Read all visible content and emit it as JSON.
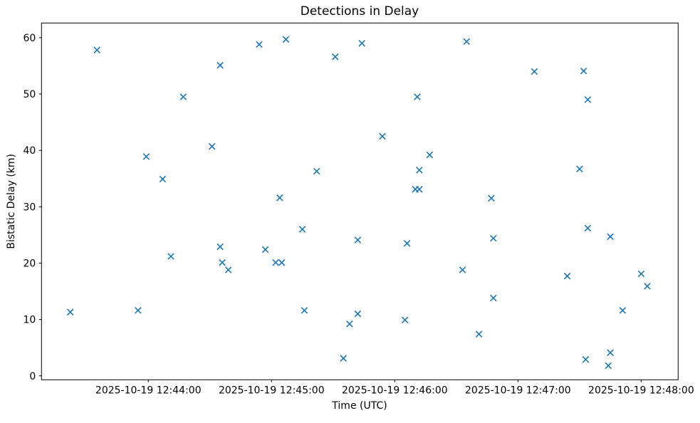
{
  "title": "Detections in Delay",
  "colors": {
    "marker": "#1f77b4",
    "axis": "#000000",
    "background": "#ffffff"
  },
  "chart_data": {
    "type": "scatter",
    "title": "Detections in Delay",
    "xlabel": "Time (UTC)",
    "ylabel": "Bistatic Delay (km)",
    "marker": "x",
    "marker_color": "#1f77b4",
    "grid": false,
    "legend": "none",
    "xlim": [
      "2025-10-19 12:43:08",
      "2025-10-19 12:48:18"
    ],
    "ylim": [
      -0.7,
      62.6
    ],
    "x_ticks": [
      "2025-10-19 12:44:00",
      "2025-10-19 12:45:00",
      "2025-10-19 12:46:00",
      "2025-10-19 12:47:00",
      "2025-10-19 12:48:00"
    ],
    "y_ticks": [
      0,
      10,
      20,
      30,
      40,
      50,
      60
    ],
    "points": [
      [
        "2025-10-19 12:43:22",
        11.3
      ],
      [
        "2025-10-19 12:43:35",
        57.8
      ],
      [
        "2025-10-19 12:43:55",
        11.6
      ],
      [
        "2025-10-19 12:43:59",
        38.9
      ],
      [
        "2025-10-19 12:44:07",
        34.9
      ],
      [
        "2025-10-19 12:44:11",
        21.2
      ],
      [
        "2025-10-19 12:44:17",
        49.5
      ],
      [
        "2025-10-19 12:44:31",
        40.7
      ],
      [
        "2025-10-19 12:44:35",
        55.1
      ],
      [
        "2025-10-19 12:44:35",
        22.9
      ],
      [
        "2025-10-19 12:44:36",
        20.1
      ],
      [
        "2025-10-19 12:44:39",
        18.8
      ],
      [
        "2025-10-19 12:44:54",
        58.8
      ],
      [
        "2025-10-19 12:44:57",
        22.4
      ],
      [
        "2025-10-19 12:45:02",
        20.1
      ],
      [
        "2025-10-19 12:45:04",
        31.6
      ],
      [
        "2025-10-19 12:45:05",
        20.1
      ],
      [
        "2025-10-19 12:45:07",
        59.7
      ],
      [
        "2025-10-19 12:45:15",
        26.0
      ],
      [
        "2025-10-19 12:45:16",
        11.6
      ],
      [
        "2025-10-19 12:45:22",
        36.3
      ],
      [
        "2025-10-19 12:45:31",
        56.6
      ],
      [
        "2025-10-19 12:45:35",
        3.1
      ],
      [
        "2025-10-19 12:45:38",
        9.2
      ],
      [
        "2025-10-19 12:45:42",
        24.1
      ],
      [
        "2025-10-19 12:45:42",
        11.0
      ],
      [
        "2025-10-19 12:45:44",
        59.0
      ],
      [
        "2025-10-19 12:45:54",
        42.5
      ],
      [
        "2025-10-19 12:46:05",
        9.9
      ],
      [
        "2025-10-19 12:46:06",
        23.5
      ],
      [
        "2025-10-19 12:46:10",
        33.1
      ],
      [
        "2025-10-19 12:46:11",
        49.5
      ],
      [
        "2025-10-19 12:46:12",
        33.1
      ],
      [
        "2025-10-19 12:46:12",
        36.5
      ],
      [
        "2025-10-19 12:46:17",
        39.2
      ],
      [
        "2025-10-19 12:46:33",
        18.8
      ],
      [
        "2025-10-19 12:46:35",
        59.3
      ],
      [
        "2025-10-19 12:46:41",
        7.4
      ],
      [
        "2025-10-19 12:46:47",
        31.5
      ],
      [
        "2025-10-19 12:46:48",
        24.4
      ],
      [
        "2025-10-19 12:46:48",
        13.8
      ],
      [
        "2025-10-19 12:47:08",
        54.0
      ],
      [
        "2025-10-19 12:47:24",
        17.7
      ],
      [
        "2025-10-19 12:47:30",
        36.7
      ],
      [
        "2025-10-19 12:47:32",
        54.1
      ],
      [
        "2025-10-19 12:47:33",
        2.9
      ],
      [
        "2025-10-19 12:47:34",
        49.0
      ],
      [
        "2025-10-19 12:47:34",
        26.2
      ],
      [
        "2025-10-19 12:47:44",
        1.8
      ],
      [
        "2025-10-19 12:47:45",
        24.7
      ],
      [
        "2025-10-19 12:47:45",
        4.1
      ],
      [
        "2025-10-19 12:47:51",
        11.6
      ],
      [
        "2025-10-19 12:48:00",
        18.1
      ],
      [
        "2025-10-19 12:48:03",
        15.9
      ]
    ]
  }
}
